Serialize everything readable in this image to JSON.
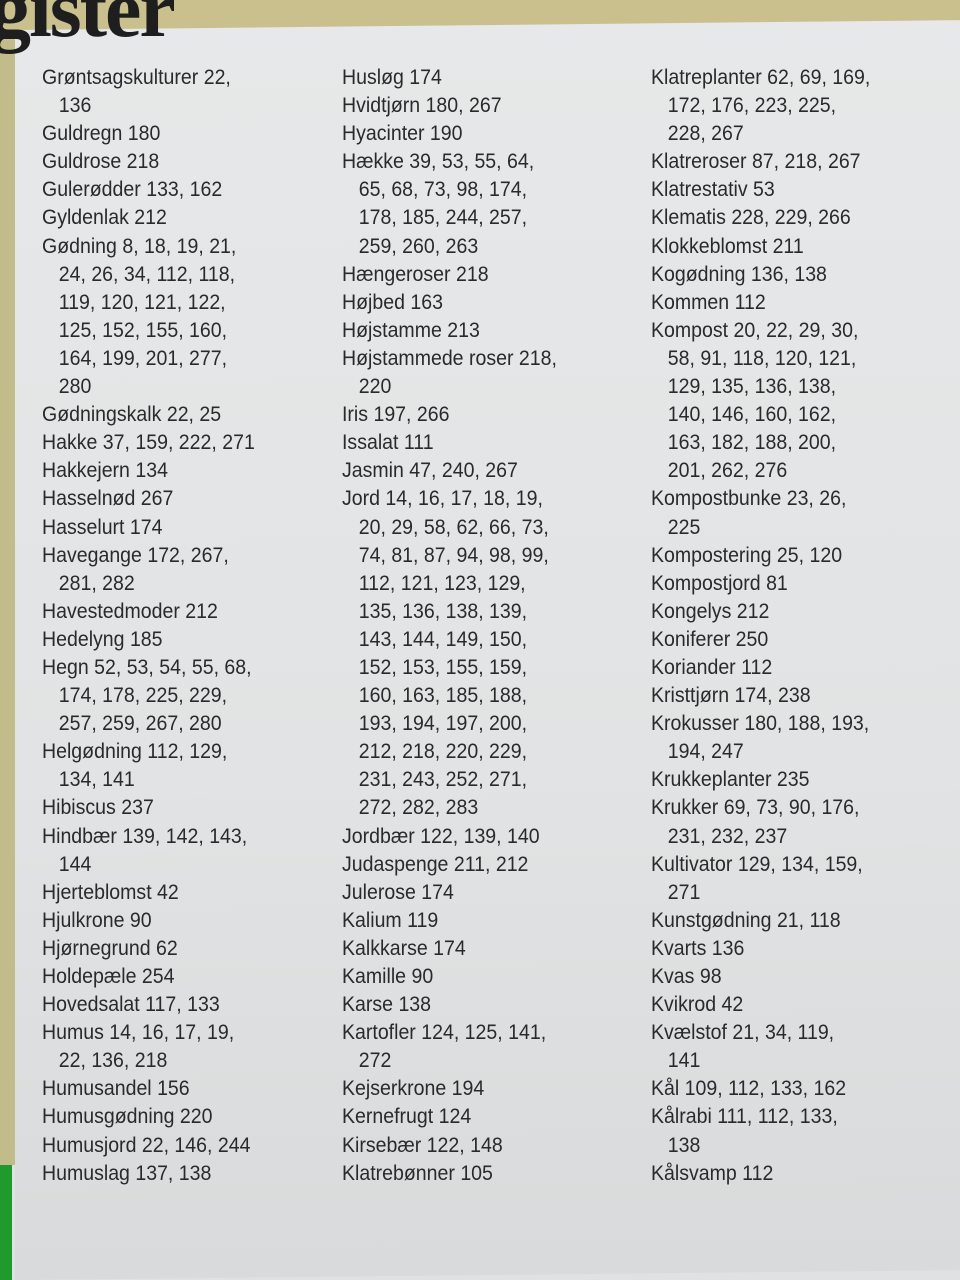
{
  "header": {
    "title": "gister"
  },
  "columns": [
    [
      [
        "Grøntsagskulturer  22,",
        "136"
      ],
      [
        "Guldregn  180"
      ],
      [
        "Guldrose  218"
      ],
      [
        "Gulerødder  133, 162"
      ],
      [
        "Gyldenlak  212"
      ],
      [
        "Gødning  8, 18, 19, 21,",
        "24, 26, 34, 112, 118,",
        "119, 120, 121, 122,",
        "125, 152, 155, 160,",
        "164, 199, 201, 277,",
        "280"
      ],
      [
        "Gødningskalk  22, 25"
      ],
      [
        "Hakke  37, 159, 222, 271"
      ],
      [
        "Hakkejern  134"
      ],
      [
        "Hasselnød  267"
      ],
      [
        "Hasselurt  174"
      ],
      [
        "Havegange  172, 267,",
        "281, 282"
      ],
      [
        "Havestedmoder  212"
      ],
      [
        "Hedelyng  185"
      ],
      [
        "Hegn  52, 53, 54, 55, 68,",
        "174, 178, 225, 229,",
        "257, 259, 267, 280"
      ],
      [
        "Helgødning  112, 129,",
        "134, 141"
      ],
      [
        "Hibiscus  237"
      ],
      [
        "Hindbær  139, 142, 143,",
        "144"
      ],
      [
        "Hjerteblomst  42"
      ],
      [
        "Hjulkrone  90"
      ],
      [
        "Hjørnegrund  62"
      ],
      [
        "Holdepæle  254"
      ],
      [
        "Hovedsalat  117, 133"
      ],
      [
        "Humus  14, 16, 17, 19,",
        "22, 136, 218"
      ],
      [
        "Humusandel  156"
      ],
      [
        "Humusgødning  220"
      ],
      [
        "Humusjord  22, 146, 244"
      ],
      [
        "Humuslag  137, 138"
      ]
    ],
    [
      [
        "Husløg  174"
      ],
      [
        "Hvidtjørn  180, 267"
      ],
      [
        "Hyacinter  190"
      ],
      [
        "Hække  39, 53, 55, 64,",
        "65, 68, 73, 98, 174,",
        "178, 185, 244, 257,",
        "259, 260, 263"
      ],
      [
        "Hængeroser  218"
      ],
      [
        "Højbed  163"
      ],
      [
        "Højstamme  213"
      ],
      [
        "Højstammede roser  218,",
        "220"
      ],
      [
        "Iris  197, 266"
      ],
      [
        "Issalat  111"
      ],
      [
        "Jasmin  47, 240, 267"
      ],
      [
        "Jord  14, 16, 17, 18, 19,",
        "20, 29, 58, 62, 66, 73,",
        "74, 81, 87, 94, 98, 99,",
        "112, 121, 123, 129,",
        "135, 136, 138, 139,",
        "143, 144, 149, 150,",
        "152, 153, 155, 159,",
        "160, 163, 185, 188,",
        "193, 194, 197, 200,",
        "212, 218, 220, 229,",
        "231, 243, 252, 271,",
        "272, 282, 283"
      ],
      [
        "Jordbær  122, 139, 140"
      ],
      [
        "Judaspenge  211, 212"
      ],
      [
        "Julerose  174"
      ],
      [
        "Kalium  119"
      ],
      [
        "Kalkkarse  174"
      ],
      [
        "Kamille  90"
      ],
      [
        "Karse  138"
      ],
      [
        "Kartofler  124, 125, 141,",
        "272"
      ],
      [
        "Kejserkrone  194"
      ],
      [
        "Kernefrugt  124"
      ],
      [
        "Kirsebær  122, 148"
      ],
      [
        "Klatrebønner  105"
      ]
    ],
    [
      [
        "Klatreplanter  62, 69, 169,",
        "172, 176, 223, 225,",
        "228, 267"
      ],
      [
        "Klatreroser  87, 218, 267"
      ],
      [
        "Klatrestativ  53"
      ],
      [
        "Klematis  228, 229, 266"
      ],
      [
        "Klokkeblomst  211"
      ],
      [
        "Kogødning  136, 138"
      ],
      [
        "Kommen  112"
      ],
      [
        "Kompost  20, 22, 29, 30,",
        "58, 91, 118, 120, 121,",
        "129, 135, 136, 138,",
        "140, 146, 160, 162,",
        "163, 182, 188, 200,",
        "201, 262, 276"
      ],
      [
        "Kompostbunke  23, 26,",
        "225"
      ],
      [
        "Kompostering  25, 120"
      ],
      [
        "Kompostjord  81"
      ],
      [
        "Kongelys  212"
      ],
      [
        "Koniferer  250"
      ],
      [
        "Koriander  112"
      ],
      [
        "Kristtjørn  174, 238"
      ],
      [
        "Krokusser  180, 188, 193,",
        "194, 247"
      ],
      [
        "Krukkeplanter  235"
      ],
      [
        "Krukker  69, 73, 90, 176,",
        "231, 232, 237"
      ],
      [
        "Kultivator  129, 134, 159,",
        "271"
      ],
      [
        "Kunstgødning  21, 118"
      ],
      [
        "Kvarts  136"
      ],
      [
        "Kvas  98"
      ],
      [
        "Kvikrod  42"
      ],
      [
        "Kvælstof  21, 34, 119,",
        "141"
      ],
      [
        "Kål  109, 112, 133, 162"
      ],
      [
        "Kålrabi  111, 112, 133,",
        "138"
      ],
      [
        "Kålsvamp  112"
      ]
    ]
  ]
}
